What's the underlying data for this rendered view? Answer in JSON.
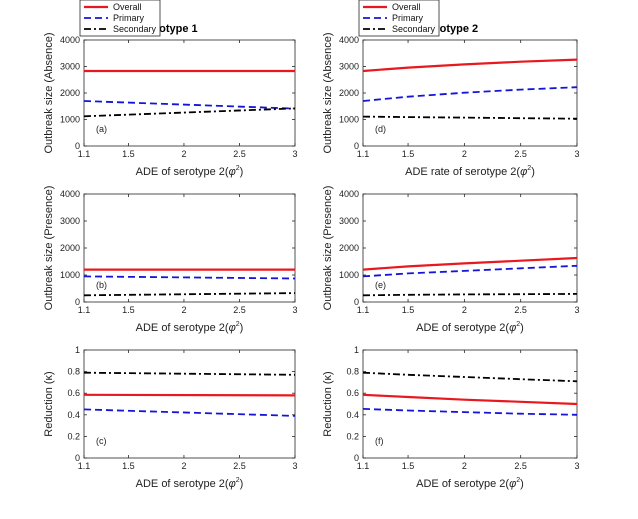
{
  "chart_data": [
    {
      "type": "line",
      "panel": "a",
      "title": "Serotype 1",
      "xlabel_pre": "ADE of serotype 2(",
      "xlabel_sym": "φ",
      "xlabel_sup": "2",
      "xlabel_post": ")",
      "ylabel": "Outbreak size (Absence)",
      "panel_label": "(a)",
      "xlim": [
        1.1,
        3
      ],
      "ylim": [
        0,
        4000
      ],
      "xticks": [
        1.1,
        1.5,
        2,
        2.5,
        3
      ],
      "xticklabels": [
        "1.1",
        "1.5",
        "2",
        "2.5",
        "3"
      ],
      "yticks": [
        0,
        1000,
        2000,
        3000,
        4000
      ],
      "yticklabels": [
        "0",
        "1000",
        "2000",
        "3000",
        "4000"
      ],
      "x": [
        1.1,
        3
      ],
      "series": [
        {
          "name": "Overall",
          "values": [
            2830,
            2830
          ]
        },
        {
          "name": "Primary",
          "values": [
            1700,
            1410
          ]
        },
        {
          "name": "Secondary",
          "values": [
            1120,
            1420
          ]
        }
      ]
    },
    {
      "type": "line",
      "panel": "d",
      "title": "Serotype 2",
      "xlabel_pre": "ADE rate of serotype 2(",
      "xlabel_sym": "φ",
      "xlabel_sup": "2",
      "xlabel_post": ")",
      "ylabel": "Outbreak size (Absence)",
      "panel_label": "(d)",
      "xlim": [
        1.1,
        3
      ],
      "ylim": [
        0,
        4000
      ],
      "xticks": [
        1.1,
        1.5,
        2,
        2.5,
        3
      ],
      "xticklabels": [
        "1.1",
        "1.5",
        "2",
        "2.5",
        "3"
      ],
      "yticks": [
        0,
        1000,
        2000,
        3000,
        4000
      ],
      "yticklabels": [
        "0",
        "1000",
        "2000",
        "3000",
        "4000"
      ],
      "x": [
        1.1,
        1.5,
        2,
        2.5,
        3
      ],
      "series": [
        {
          "name": "Overall",
          "values": [
            2830,
            2960,
            3080,
            3180,
            3260
          ]
        },
        {
          "name": "Primary",
          "values": [
            1700,
            1860,
            2010,
            2130,
            2220
          ]
        },
        {
          "name": "Secondary",
          "values": [
            1110,
            1090,
            1070,
            1050,
            1030
          ]
        }
      ]
    },
    {
      "type": "line",
      "panel": "b",
      "title": "",
      "xlabel_pre": "ADE of serotype 2(",
      "xlabel_sym": "φ",
      "xlabel_sup": "2",
      "xlabel_post": ")",
      "ylabel": "Outbreak size (Presence)",
      "panel_label": "(b)",
      "xlim": [
        1.1,
        3
      ],
      "ylim": [
        0,
        4000
      ],
      "xticks": [
        1.1,
        1.5,
        2,
        2.5,
        3
      ],
      "xticklabels": [
        "1.1",
        "1.5",
        "2",
        "2.5",
        "3"
      ],
      "yticks": [
        0,
        1000,
        2000,
        3000,
        4000
      ],
      "yticklabels": [
        "0",
        "1000",
        "2000",
        "3000",
        "4000"
      ],
      "x": [
        1.1,
        3
      ],
      "series": [
        {
          "name": "Overall",
          "values": [
            1200,
            1200
          ]
        },
        {
          "name": "Primary",
          "values": [
            950,
            870
          ]
        },
        {
          "name": "Secondary",
          "values": [
            250,
            330
          ]
        }
      ]
    },
    {
      "type": "line",
      "panel": "e",
      "title": "",
      "xlabel_pre": "ADE of serotype 2(",
      "xlabel_sym": "φ",
      "xlabel_sup": "2",
      "xlabel_post": ")",
      "ylabel": "Outbreak size (Presence)",
      "panel_label": "(e)",
      "xlim": [
        1.1,
        3
      ],
      "ylim": [
        0,
        4000
      ],
      "xticks": [
        1.1,
        1.5,
        2,
        2.5,
        3
      ],
      "xticklabels": [
        "1.1",
        "1.5",
        "2",
        "2.5",
        "3"
      ],
      "yticks": [
        0,
        1000,
        2000,
        3000,
        4000
      ],
      "yticklabels": [
        "0",
        "1000",
        "2000",
        "3000",
        "4000"
      ],
      "x": [
        1.1,
        1.5,
        2,
        2.5,
        3
      ],
      "series": [
        {
          "name": "Overall",
          "values": [
            1200,
            1320,
            1430,
            1530,
            1630
          ]
        },
        {
          "name": "Primary",
          "values": [
            950,
            1060,
            1150,
            1250,
            1340
          ]
        },
        {
          "name": "Secondary",
          "values": [
            250,
            265,
            280,
            290,
            300
          ]
        }
      ]
    },
    {
      "type": "line",
      "panel": "c",
      "title": "",
      "xlabel_pre": "ADE of serotype 2(",
      "xlabel_sym": "φ",
      "xlabel_sup": "2",
      "xlabel_post": ")",
      "ylabel": "Reduction (κ)",
      "panel_label": "(c)",
      "xlim": [
        1.1,
        3
      ],
      "ylim": [
        0,
        1
      ],
      "xticks": [
        1.1,
        1.5,
        2,
        2.5,
        3
      ],
      "xticklabels": [
        "1.1",
        "1.5",
        "2",
        "2.5",
        "3"
      ],
      "yticks": [
        0,
        0.2,
        0.4,
        0.6,
        0.8,
        1
      ],
      "yticklabels": [
        "0",
        "0.2",
        "0.4",
        "0.6",
        "0.8",
        "1"
      ],
      "x": [
        1.1,
        3
      ],
      "series": [
        {
          "name": "Overall",
          "values": [
            0.585,
            0.58
          ]
        },
        {
          "name": "Primary",
          "values": [
            0.45,
            0.39
          ]
        },
        {
          "name": "Secondary",
          "values": [
            0.79,
            0.77
          ]
        }
      ]
    },
    {
      "type": "line",
      "panel": "f",
      "title": "",
      "xlabel_pre": "ADE of serotype 2(",
      "xlabel_sym": "φ",
      "xlabel_sup": "2",
      "xlabel_post": ")",
      "ylabel": "Reduction (κ)",
      "panel_label": "(f)",
      "xlim": [
        1.1,
        3
      ],
      "ylim": [
        0,
        1
      ],
      "xticks": [
        1.1,
        1.5,
        2,
        2.5,
        3
      ],
      "xticklabels": [
        "1.1",
        "1.5",
        "2",
        "2.5",
        "3"
      ],
      "yticks": [
        0,
        0.2,
        0.4,
        0.6,
        0.8,
        1
      ],
      "yticklabels": [
        "0",
        "0.2",
        "0.4",
        "0.6",
        "0.8",
        "1"
      ],
      "x": [
        1.1,
        1.5,
        2,
        2.5,
        3
      ],
      "series": [
        {
          "name": "Overall",
          "values": [
            0.585,
            0.565,
            0.54,
            0.52,
            0.5
          ]
        },
        {
          "name": "Primary",
          "values": [
            0.455,
            0.44,
            0.425,
            0.41,
            0.4
          ]
        },
        {
          "name": "Secondary",
          "values": [
            0.79,
            0.77,
            0.75,
            0.73,
            0.71
          ]
        }
      ]
    }
  ],
  "legends": [
    {
      "items": [
        {
          "name": "Overall",
          "style": "solid",
          "color": "#e8191e"
        },
        {
          "name": "Primary",
          "style": "dash",
          "color": "#1515d8"
        },
        {
          "name": "Secondary",
          "style": "dashdot",
          "color": "#000000"
        }
      ]
    },
    {
      "items": [
        {
          "name": "Overall",
          "style": "solid",
          "color": "#e8191e"
        },
        {
          "name": "Primary",
          "style": "dash",
          "color": "#1515d8"
        },
        {
          "name": "Secondary",
          "style": "dashdot",
          "color": "#000000"
        }
      ]
    }
  ],
  "styles": {
    "Overall": {
      "color": "#e8191e",
      "dash": ""
    },
    "Primary": {
      "color": "#1515d8",
      "dash": "7,4"
    },
    "Secondary": {
      "color": "#000000",
      "dash": "7,3,2,3"
    }
  }
}
